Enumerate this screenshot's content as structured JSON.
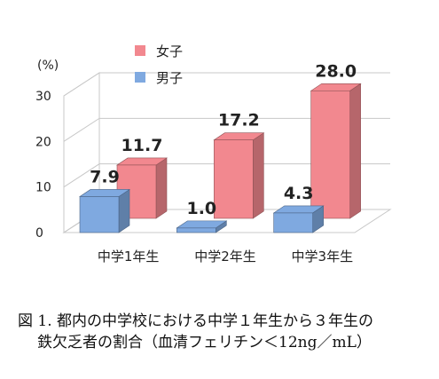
{
  "chart_data": {
    "type": "bar",
    "unit_label": "(%)",
    "categories": [
      "中学1年生",
      "中学2年生",
      "中学3年生"
    ],
    "series": [
      {
        "name": "女子",
        "values": [
          11.7,
          17.2,
          28.0
        ],
        "labels": [
          "11.7",
          "17.2",
          "28.0"
        ],
        "color": "#f2888f"
      },
      {
        "name": "男子",
        "values": [
          7.9,
          1.0,
          4.3
        ],
        "labels": [
          "7.9",
          "1.0",
          "4.3"
        ],
        "color": "#7fa9e0"
      }
    ],
    "ylim": [
      0,
      30
    ],
    "yticks": [
      "0",
      "10",
      "20",
      "30"
    ],
    "grid": true,
    "legend_position": "top-left",
    "three_d": true
  },
  "caption": {
    "line1": "図 1. 都内の中学校における中学１年生から３年生の",
    "line2": "鉄欠乏者の割合（血清フェリチン＜12ng／mL）"
  }
}
